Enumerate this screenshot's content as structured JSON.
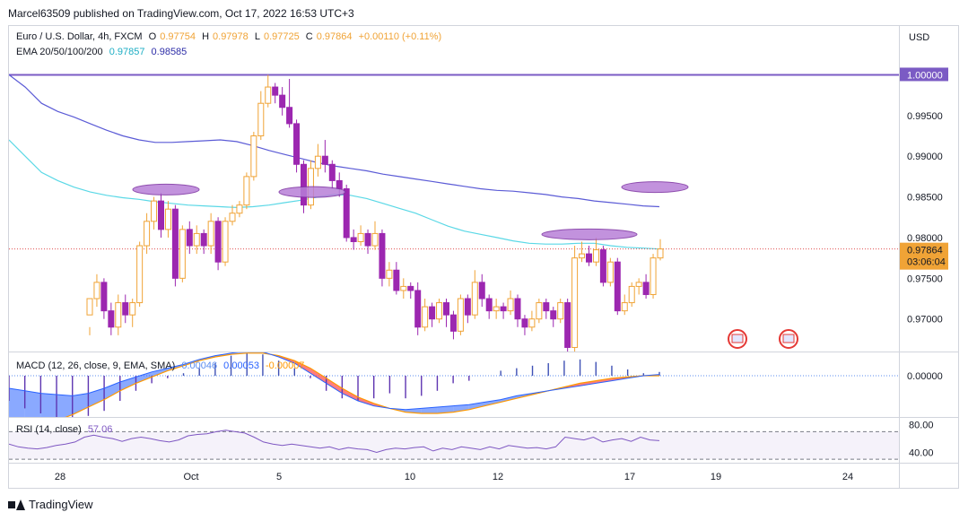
{
  "header": {
    "published": "Marcel63509 published on TradingView.com, Oct 17, 2022 16:53 UTC+3"
  },
  "legend": {
    "symbol": "Euro / U.S. Dollar, 4h, FXCM",
    "o_label": "O",
    "o": "0.97754",
    "h_label": "H",
    "h": "0.97978",
    "l_label": "L",
    "l": "0.97725",
    "c_label": "C",
    "c": "0.97864",
    "change": "+0.00110 (+0.11%)",
    "ema_label": "EMA 20/50/100/200",
    "ema1": "0.97857",
    "ema2": "0.98585"
  },
  "macd": {
    "label": "MACD (12, 26, close, 9, EMA, SMA)",
    "v1": "0.00046",
    "v2": "0.00053",
    "v3": "-0.00007"
  },
  "rsi": {
    "label": "RSI (14, close)",
    "value": "57.06"
  },
  "currency": "USD",
  "price_badges": {
    "level": "1.00000",
    "last": "0.97864",
    "countdown": "03:06:04"
  },
  "colors": {
    "up": "#f0a336",
    "down": "#9c27b0",
    "ema_fast": "#5ad8e6",
    "ema_slow": "#5b5bd6",
    "hline": "#7b5bc4",
    "macd_line": "#2962ff",
    "signal_line": "#ff9800",
    "rsi": "#7e57c2"
  },
  "brand": "TradingView",
  "chart_data": [
    {
      "type": "candlestick",
      "title": "Euro / U.S. Dollar, 4h, FXCM",
      "ylim": [
        0.966,
        1.006
      ],
      "y_ticks": [
        "0.97000",
        "0.97500",
        "0.98000",
        "0.98500",
        "0.99000",
        "0.99500",
        "1.00000"
      ],
      "x_ticks": [
        "28",
        "Oct",
        "5",
        "10",
        "12",
        "17",
        "19",
        "24"
      ],
      "horizontal_line": 1.0,
      "candles": [
        [
          0.9705,
          0.9725,
          0.969,
          0.968
        ],
        [
          0.9725,
          0.9745,
          0.9755,
          0.9715
        ],
        [
          0.9745,
          0.971,
          0.975,
          0.97
        ],
        [
          0.971,
          0.969,
          0.972,
          0.968
        ],
        [
          0.969,
          0.972,
          0.973,
          0.968
        ],
        [
          0.972,
          0.9705,
          0.973,
          0.9695
        ],
        [
          0.9705,
          0.972,
          0.9725,
          0.969
        ],
        [
          0.972,
          0.979,
          0.9795,
          0.9715
        ],
        [
          0.979,
          0.982,
          0.983,
          0.978
        ],
        [
          0.982,
          0.9845,
          0.985,
          0.981
        ],
        [
          0.9845,
          0.981,
          0.9855,
          0.98
        ],
        [
          0.981,
          0.9835,
          0.9845,
          0.98
        ],
        [
          0.9835,
          0.975,
          0.984,
          0.974
        ],
        [
          0.975,
          0.981,
          0.9815,
          0.9745
        ],
        [
          0.981,
          0.979,
          0.982,
          0.978
        ],
        [
          0.979,
          0.9805,
          0.9815,
          0.978
        ],
        [
          0.9805,
          0.979,
          0.981,
          0.978
        ],
        [
          0.979,
          0.982,
          0.983,
          0.978
        ],
        [
          0.982,
          0.977,
          0.9825,
          0.976
        ],
        [
          0.977,
          0.982,
          0.9825,
          0.9765
        ],
        [
          0.982,
          0.983,
          0.984,
          0.9815
        ],
        [
          0.983,
          0.984,
          0.9845,
          0.9825
        ],
        [
          0.984,
          0.9875,
          0.988,
          0.9835
        ],
        [
          0.9875,
          0.9925,
          0.993,
          0.987
        ],
        [
          0.9925,
          0.9965,
          0.998,
          0.992
        ],
        [
          0.9965,
          0.9985,
          1.0,
          0.996
        ],
        [
          0.9985,
          0.9975,
          0.999,
          0.9965
        ],
        [
          0.9975,
          0.996,
          0.9985,
          0.995
        ],
        [
          0.996,
          0.994,
          0.9995,
          0.9935
        ],
        [
          0.994,
          0.989,
          0.9945,
          0.988
        ],
        [
          0.989,
          0.984,
          0.9895,
          0.983
        ],
        [
          0.984,
          0.9885,
          0.9895,
          0.9835
        ],
        [
          0.9885,
          0.99,
          0.9915,
          0.9875
        ],
        [
          0.99,
          0.989,
          0.992,
          0.988
        ],
        [
          0.989,
          0.987,
          0.9895,
          0.986
        ],
        [
          0.987,
          0.986,
          0.988,
          0.985
        ],
        [
          0.986,
          0.98,
          0.9865,
          0.9795
        ],
        [
          0.98,
          0.9795,
          0.981,
          0.9785
        ],
        [
          0.9795,
          0.9805,
          0.9815,
          0.979
        ],
        [
          0.9805,
          0.979,
          0.981,
          0.978
        ],
        [
          0.979,
          0.9805,
          0.982,
          0.9785
        ],
        [
          0.9805,
          0.975,
          0.981,
          0.974
        ],
        [
          0.975,
          0.976,
          0.977,
          0.974
        ],
        [
          0.976,
          0.9735,
          0.977,
          0.973
        ],
        [
          0.9735,
          0.974,
          0.975,
          0.9725
        ],
        [
          0.974,
          0.9735,
          0.9745,
          0.9725
        ],
        [
          0.9735,
          0.969,
          0.9745,
          0.968
        ],
        [
          0.969,
          0.9715,
          0.9725,
          0.9685
        ],
        [
          0.9715,
          0.97,
          0.972,
          0.969
        ],
        [
          0.97,
          0.972,
          0.9725,
          0.9695
        ],
        [
          0.972,
          0.9705,
          0.9725,
          0.969
        ],
        [
          0.9705,
          0.9685,
          0.971,
          0.9675
        ],
        [
          0.9685,
          0.9725,
          0.973,
          0.968
        ],
        [
          0.9725,
          0.9705,
          0.973,
          0.9695
        ],
        [
          0.9705,
          0.9745,
          0.976,
          0.97
        ],
        [
          0.9745,
          0.9725,
          0.9755,
          0.9715
        ],
        [
          0.9725,
          0.971,
          0.973,
          0.97
        ],
        [
          0.971,
          0.9715,
          0.9725,
          0.97
        ],
        [
          0.9715,
          0.971,
          0.972,
          0.97
        ],
        [
          0.971,
          0.9725,
          0.9735,
          0.9705
        ],
        [
          0.9725,
          0.97,
          0.973,
          0.969
        ],
        [
          0.97,
          0.969,
          0.9705,
          0.968
        ],
        [
          0.969,
          0.97,
          0.971,
          0.9685
        ],
        [
          0.97,
          0.972,
          0.9725,
          0.9695
        ],
        [
          0.972,
          0.971,
          0.9725,
          0.97
        ],
        [
          0.971,
          0.97,
          0.9715,
          0.969
        ],
        [
          0.97,
          0.972,
          0.9725,
          0.9695
        ],
        [
          0.972,
          0.9665,
          0.9725,
          0.9655
        ],
        [
          0.9665,
          0.9775,
          0.979,
          0.966
        ],
        [
          0.9775,
          0.978,
          0.9795,
          0.977
        ],
        [
          0.978,
          0.977,
          0.979,
          0.9765
        ],
        [
          0.977,
          0.9785,
          0.98,
          0.9765
        ],
        [
          0.9785,
          0.9745,
          0.979,
          0.974
        ],
        [
          0.9745,
          0.977,
          0.9775,
          0.974
        ],
        [
          0.977,
          0.971,
          0.9775,
          0.9705
        ],
        [
          0.971,
          0.972,
          0.973,
          0.9705
        ],
        [
          0.972,
          0.974,
          0.9745,
          0.9715
        ],
        [
          0.974,
          0.9745,
          0.975,
          0.973
        ],
        [
          0.9745,
          0.973,
          0.9755,
          0.9725
        ],
        [
          0.973,
          0.9775,
          0.978,
          0.9725
        ],
        [
          0.9775,
          0.9786,
          0.9798,
          0.9772
        ]
      ],
      "ema_fast": [
        0.992,
        0.99,
        0.988,
        0.987,
        0.9862,
        0.9856,
        0.9852,
        0.9849,
        0.9847,
        0.9844,
        0.9842,
        0.984,
        0.9839,
        0.9838,
        0.9837,
        0.9838,
        0.984,
        0.9843,
        0.9846,
        0.985,
        0.9853,
        0.9852,
        0.9848,
        0.9842,
        0.9836,
        0.983,
        0.9822,
        0.9814,
        0.9808,
        0.9804,
        0.98,
        0.9796,
        0.9793,
        0.9792,
        0.9792,
        0.9793,
        0.9793,
        0.979,
        0.9788,
        0.9787,
        0.9786
      ],
      "ema_slow": [
        1.0,
        0.9985,
        0.9965,
        0.9955,
        0.9948,
        0.994,
        0.9932,
        0.9925,
        0.992,
        0.9917,
        0.9917,
        0.9918,
        0.9919,
        0.992,
        0.9918,
        0.9913,
        0.9907,
        0.9902,
        0.9897,
        0.9892,
        0.9888,
        0.9885,
        0.9882,
        0.9878,
        0.9875,
        0.9872,
        0.9869,
        0.9866,
        0.9863,
        0.986,
        0.9858,
        0.9857,
        0.9855,
        0.9853,
        0.985,
        0.9848,
        0.9845,
        0.9843,
        0.9841,
        0.9839,
        0.9838
      ]
    },
    {
      "type": "macd",
      "title": "MACD (12, 26, close, 9, EMA, SMA)",
      "histogram": [
        -0.002,
        -0.0026,
        -0.003,
        -0.0034,
        -0.0034,
        -0.0032,
        -0.0028,
        -0.002,
        -0.0012,
        -0.0006,
        -0.0002,
        0.0002,
        0.0006,
        0.001,
        0.0016,
        0.0018,
        0.0017,
        0.0012,
        0.0006,
        -0.0002,
        -0.0012,
        -0.0018,
        -0.002,
        -0.0018,
        -0.0014,
        -0.0018,
        -0.0016,
        -0.0012,
        -0.0006,
        -0.0004,
        0.0,
        0.0004,
        0.0006,
        0.0008,
        0.001,
        0.0012,
        0.0013,
        0.0011,
        0.0008,
        0.0005,
        0.0002,
        0.0003
      ],
      "macd_line": [
        -0.001,
        -0.0012,
        -0.0014,
        -0.0015,
        -0.0016,
        -0.0014,
        -0.001,
        -0.0005,
        -0.0001,
        0.0003,
        0.0006,
        0.0009,
        0.0013,
        0.0016,
        0.0018,
        0.002,
        0.0019,
        0.0015,
        0.001,
        0.0002,
        -0.0006,
        -0.0014,
        -0.002,
        -0.0024,
        -0.0026,
        -0.0027,
        -0.0026,
        -0.0025,
        -0.0024,
        -0.0023,
        -0.0021,
        -0.0019,
        -0.0016,
        -0.0014,
        -0.0012,
        -0.001,
        -0.0008,
        -0.0006,
        -0.0004,
        -0.0002,
        0.0,
        0.0001
      ],
      "signal_line": [
        -0.0045,
        -0.0043,
        -0.004,
        -0.0036,
        -0.0031,
        -0.0025,
        -0.0019,
        -0.0012,
        -0.0006,
        -0.0001,
        0.0004,
        0.0008,
        0.0012,
        0.0015,
        0.0017,
        0.0018,
        0.0018,
        0.0016,
        0.0012,
        0.0006,
        -0.0002,
        -0.001,
        -0.0017,
        -0.0022,
        -0.0026,
        -0.0029,
        -0.003,
        -0.003,
        -0.0029,
        -0.0027,
        -0.0024,
        -0.0021,
        -0.0018,
        -0.0015,
        -0.0012,
        -0.0009,
        -0.0006,
        -0.0004,
        -0.0002,
        -0.0001,
        0.0,
        0.0
      ],
      "y_ticks": [
        "0.00000"
      ]
    },
    {
      "type": "line",
      "title": "RSI (14, close)",
      "ylim": [
        25,
        90
      ],
      "y_ticks": [
        "80.00",
        "40.00"
      ],
      "bands": [
        70,
        30
      ],
      "values": [
        52,
        48,
        46,
        45,
        47,
        50,
        52,
        55,
        62,
        65,
        62,
        60,
        56,
        60,
        62,
        60,
        57,
        55,
        58,
        64,
        66,
        67,
        70,
        72,
        70,
        68,
        62,
        55,
        52,
        50,
        52,
        50,
        48,
        46,
        48,
        44,
        47,
        45,
        44,
        40,
        44,
        46,
        45,
        47,
        48,
        42,
        46,
        44,
        48,
        46,
        44,
        48,
        45,
        50,
        48,
        46,
        47,
        45,
        48,
        62,
        60,
        58,
        62,
        55,
        58,
        60,
        56,
        62,
        58,
        57
      ]
    }
  ]
}
